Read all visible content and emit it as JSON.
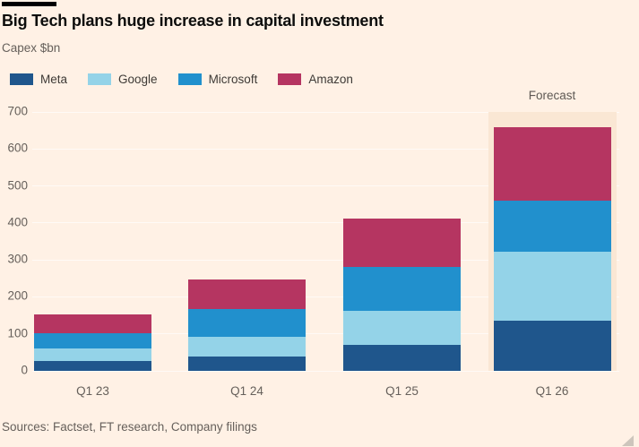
{
  "title": "Big Tech plans huge increase in capital investment",
  "subtitle": "Capex $bn",
  "forecast_label": "Forecast",
  "source_line": "Sources: Factset, FT research, Company filings",
  "colors": {
    "background": "#FFF1E5",
    "forecast_band": "#FAE7D4",
    "title_text": "#0D0D0C",
    "axis_text": "#66605B",
    "top_bar": "#000000"
  },
  "chart_data": {
    "type": "bar",
    "stacked": true,
    "title": "Big Tech plans huge increase in capital investment",
    "ylabel": "Capex $bn",
    "categories": [
      "Q1 23",
      "Q1 24",
      "Q1 25",
      "Q1 26"
    ],
    "series": [
      {
        "name": "Meta",
        "color": "#1F568C",
        "values": [
          27,
          38,
          70,
          135
        ]
      },
      {
        "name": "Google",
        "color": "#94D3E8",
        "values": [
          33,
          53,
          92,
          187
        ]
      },
      {
        "name": "Microsoft",
        "color": "#2190CD",
        "values": [
          42,
          77,
          120,
          138
        ]
      },
      {
        "name": "Amazon",
        "color": "#B53561",
        "values": [
          50,
          79,
          130,
          200
        ]
      }
    ],
    "totals": [
      152,
      247,
      412,
      660
    ],
    "ylim": [
      0,
      700
    ],
    "yticks": [
      0,
      100,
      200,
      300,
      400,
      500,
      600,
      700
    ],
    "grid": "horizontal, faint white",
    "legend_position": "top-left",
    "forecast_category": "Q1 26",
    "forecast_annotation": "Forecast"
  }
}
